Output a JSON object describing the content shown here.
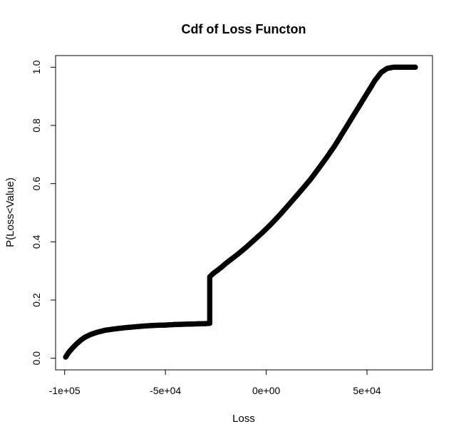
{
  "chart_data": {
    "type": "scatter",
    "title": "Cdf of Loss Functon",
    "xlabel": "Loss",
    "ylabel": "P(Loss<Value)",
    "xlim": [
      -104500,
      82500
    ],
    "ylim": [
      -0.04,
      1.04
    ],
    "x_ticks": [
      -100000,
      -50000,
      0,
      50000
    ],
    "x_tick_labels": [
      "-1e+05",
      "-5e+04",
      "0e+00",
      "5e+04"
    ],
    "y_ticks": [
      0.0,
      0.2,
      0.4,
      0.6,
      0.8,
      1.0
    ],
    "y_tick_labels": [
      "0.0",
      "0.2",
      "0.4",
      "0.6",
      "0.8",
      "1.0"
    ],
    "grid": false,
    "legend": "none",
    "marker": "open-circle",
    "color": "#000000",
    "series": [
      {
        "x": [
          -99500,
          -98000,
          -96000,
          -94000,
          -92000,
          -90000,
          -87000,
          -84000,
          -80000,
          -75000,
          -70000,
          -65000,
          -60000,
          -55000,
          -50000,
          -45000,
          -40000,
          -35000,
          -30000,
          -28000,
          -28000,
          -28000,
          -28000,
          -28000,
          -26000,
          -24000,
          -22000,
          -20000,
          -17000,
          -14000,
          -10000,
          -6000,
          -2000,
          2000,
          6000,
          10000,
          14000,
          18000,
          22000,
          26000,
          30000,
          34000,
          38000,
          42000,
          46000,
          50000,
          54000,
          57000,
          60000,
          63000,
          66000,
          70000,
          74000
        ],
        "y": [
          0.004,
          0.02,
          0.036,
          0.05,
          0.062,
          0.072,
          0.082,
          0.089,
          0.096,
          0.101,
          0.105,
          0.108,
          0.111,
          0.113,
          0.114,
          0.116,
          0.117,
          0.118,
          0.119,
          0.12,
          0.16,
          0.2,
          0.24,
          0.28,
          0.293,
          0.303,
          0.314,
          0.326,
          0.342,
          0.358,
          0.381,
          0.406,
          0.431,
          0.458,
          0.487,
          0.518,
          0.55,
          0.582,
          0.615,
          0.652,
          0.69,
          0.73,
          0.775,
          0.82,
          0.865,
          0.91,
          0.955,
          0.982,
          0.996,
          1.0,
          1.0,
          1.0,
          1.0
        ]
      }
    ]
  }
}
